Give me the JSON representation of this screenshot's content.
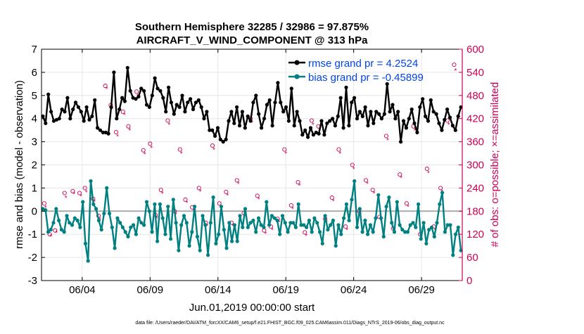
{
  "chart_data": {
    "type": "line",
    "title": "Southern Hemisphere 32285 / 32986 = 97.875%",
    "subtitle": "AIRCRAFT_V_WIND_COMPONENT @ 313 hPa",
    "xlabel": "Jun.01,2019 00:00:00 start",
    "ylabel_left": "rmse and bias (model - observation)",
    "ylabel_right": "# of obs: o=possible; ×=assimilated",
    "footer": "data file: /Users/raeder/DAI/ATM_forcXX/CAM6_setup/f.e21.FHIST_BGC.f09_025.CAM6assim.011/Diags_NTrS_2019-06/obs_diag_output.nc",
    "x_ticks": [
      {
        "value": 4,
        "label": "06/04"
      },
      {
        "value": 9,
        "label": "06/09"
      },
      {
        "value": 14,
        "label": "06/14"
      },
      {
        "value": 19,
        "label": "06/19"
      },
      {
        "value": 24,
        "label": "06/24"
      },
      {
        "value": 29,
        "label": "06/29"
      }
    ],
    "xlim": [
      1,
      32
    ],
    "ylim_left": [
      -3,
      7
    ],
    "ylim_right": [
      0,
      600
    ],
    "y_ticks_left": [
      "-3",
      "-2",
      "-1",
      "0",
      "1",
      "2",
      "3",
      "4",
      "5",
      "6",
      "7"
    ],
    "y_ticks_right": [
      "0",
      "60",
      "120",
      "180",
      "240",
      "300",
      "360",
      "420",
      "480",
      "540",
      "600"
    ],
    "legend": {
      "position": "top-right",
      "entries": [
        "rmse grand pr = 4.2524",
        "bias grand pr = -0.45899"
      ]
    },
    "colors": {
      "rmse": "#000000",
      "bias": "#008080",
      "obs": "#cc0055",
      "zero": "#aaaaaa"
    },
    "series": [
      {
        "name": "rmse",
        "values": [
          4.1,
          3.8,
          5.05,
          4.3,
          3.9,
          3.95,
          4.0,
          4.4,
          4.3,
          4.9,
          4.0,
          4.4,
          4.7,
          4.5,
          4.3,
          3.9,
          4.5,
          3.95,
          4.1,
          4.8,
          3.6,
          3.5,
          3.4,
          3.4,
          3.35,
          4.5,
          6.0,
          4.0,
          4.4,
          4.9,
          4.75,
          6.2,
          5.2,
          4.9,
          4.85,
          4.95,
          5.3,
          5.2,
          4.6,
          4.5,
          5.0,
          5.75,
          5.3,
          5.2,
          4.9,
          4.3,
          5.35,
          4.7,
          4.2,
          4.6,
          4.5,
          5.0,
          4.3,
          4.7,
          4.85,
          4.4,
          4.7,
          4.8,
          4.5,
          4.0,
          4.3,
          3.5,
          3.5,
          3.25,
          3.6,
          3.1,
          3.0,
          3.1,
          3.9,
          4.3,
          3.8,
          4.5,
          3.7,
          4.3,
          3.6,
          4.1,
          3.9,
          4.7,
          5.0,
          4.2,
          3.6,
          4.0,
          4.6,
          4.8,
          3.7,
          4.7,
          5.55,
          4.7,
          4.3,
          4.5,
          3.9,
          5.3,
          3.7,
          4.3,
          3.9,
          3.3,
          3.5,
          3.2,
          3.6,
          3.3,
          3.4,
          3.35,
          3.9,
          3.3,
          3.8,
          3.9,
          4.0,
          3.7,
          4.1,
          4.9,
          3.6,
          5.35,
          3.7,
          4.7,
          4.9,
          4.0,
          4.3,
          4.1,
          4.5,
          3.7,
          4.3,
          3.8,
          4.3,
          4.2,
          4.0,
          4.2,
          5.5,
          4.3,
          4.6,
          4.0,
          4.3,
          3.0,
          3.9,
          3.6,
          4.0,
          4.4,
          3.8,
          3.4,
          4.5,
          4.85,
          4.1,
          3.9,
          4.8,
          4.3,
          4.2,
          3.8,
          3.5,
          3.95,
          4.4,
          4.05,
          3.7,
          3.5,
          4.1,
          4.5
        ]
      },
      {
        "name": "bias",
        "values": [
          0.1,
          0.05,
          -0.9,
          -0.8,
          -0.5,
          0.1,
          -0.4,
          -0.8,
          -0.9,
          -0.2,
          -0.5,
          -0.6,
          -0.3,
          -0.4,
          -0.7,
          0.4,
          -1.4,
          -2.15,
          1.3,
          0.3,
          0.1,
          -0.4,
          -0.8,
          -0.1,
          1.0,
          -0.1,
          -0.7,
          -1.6,
          -0.3,
          -0.5,
          -0.7,
          -0.9,
          -1.1,
          -0.7,
          -0.6,
          -1.0,
          -0.3,
          -0.5,
          -0.6,
          0.4,
          0.0,
          -0.9,
          0.3,
          -1.3,
          0.3,
          -0.3,
          -1.0,
          0.2,
          -1.2,
          0.5,
          -0.5,
          -1.7,
          -0.6,
          -0.2,
          -0.5,
          -1.5,
          -0.9,
          0.2,
          -1.1,
          -1.7,
          -0.2,
          -0.6,
          -1.9,
          -0.5,
          0.6,
          -1.4,
          -1.0,
          0.2,
          -0.8,
          -1.6,
          -0.5,
          -1.3,
          -0.6,
          -1.3,
          -0.2,
          -0.7,
          0.1,
          -0.7,
          -0.5,
          -0.4,
          -0.9,
          -0.3,
          -0.6,
          -0.7,
          0.4,
          -0.6,
          -0.2,
          -0.3,
          -0.4,
          -1.0,
          -0.2,
          -0.5,
          -0.9,
          -0.5,
          -0.5,
          -0.7,
          0.3,
          -0.6,
          -0.6,
          -0.7,
          -0.4,
          -0.9,
          -0.3,
          -0.5,
          -0.9,
          -1.4,
          -0.2,
          -0.8,
          -0.6,
          -0.4,
          -1.5,
          -0.6,
          -1.0,
          -0.3,
          0.3,
          -0.4,
          0.5,
          1.3,
          -0.7,
          0.1,
          -0.9,
          -0.4,
          -1.0,
          -0.6,
          -0.9,
          -0.3,
          0.7,
          -0.3,
          -1.1,
          0.2,
          0.6,
          -0.5,
          -0.9,
          0.4,
          -0.6,
          -0.8,
          -0.9,
          -0.9,
          -0.6,
          -0.5,
          -0.7,
          0.3,
          -1.2,
          -0.5,
          -1.4,
          -0.8,
          -0.7,
          -1.1,
          -0.5,
          0.3,
          0.8,
          -0.9,
          -0.6,
          -0.6,
          -1.9,
          -1.0,
          -0.7,
          -1.7
        ]
      }
    ],
    "obs_possible": [
      {
        "x": 1.2,
        "y": 200
      },
      {
        "x": 1.6,
        "y": 120
      },
      {
        "x": 2.0,
        "y": 130
      },
      {
        "x": 2.7,
        "y": 227
      },
      {
        "x": 3.3,
        "y": 232
      },
      {
        "x": 3.8,
        "y": 227
      },
      {
        "x": 4.2,
        "y": 240
      },
      {
        "x": 4.8,
        "y": 212
      },
      {
        "x": 5.2,
        "y": 168
      },
      {
        "x": 5.7,
        "y": 505
      },
      {
        "x": 6.1,
        "y": 455
      },
      {
        "x": 6.5,
        "y": 385
      },
      {
        "x": 7.0,
        "y": 438
      },
      {
        "x": 7.4,
        "y": 400
      },
      {
        "x": 8.0,
        "y": 490
      },
      {
        "x": 8.5,
        "y": 338
      },
      {
        "x": 9.0,
        "y": 355
      },
      {
        "x": 9.4,
        "y": 170
      },
      {
        "x": 9.8,
        "y": 235
      },
      {
        "x": 10.3,
        "y": 415
      },
      {
        "x": 10.8,
        "y": 180
      },
      {
        "x": 11.2,
        "y": 340
      },
      {
        "x": 11.6,
        "y": 210
      },
      {
        "x": 12.1,
        "y": 190
      },
      {
        "x": 12.6,
        "y": 240
      },
      {
        "x": 13.1,
        "y": 150
      },
      {
        "x": 13.6,
        "y": 350
      },
      {
        "x": 14.1,
        "y": 200
      },
      {
        "x": 14.6,
        "y": 230
      },
      {
        "x": 15.0,
        "y": 150
      },
      {
        "x": 15.4,
        "y": 260
      },
      {
        "x": 15.9,
        "y": 175
      },
      {
        "x": 16.4,
        "y": 420
      },
      {
        "x": 16.9,
        "y": 220
      },
      {
        "x": 17.4,
        "y": 130
      },
      {
        "x": 17.9,
        "y": 140
      },
      {
        "x": 18.4,
        "y": 160
      },
      {
        "x": 18.9,
        "y": 340
      },
      {
        "x": 19.4,
        "y": 195
      },
      {
        "x": 19.9,
        "y": 255
      },
      {
        "x": 20.4,
        "y": 125
      },
      {
        "x": 20.9,
        "y": 415
      },
      {
        "x": 21.4,
        "y": 400
      },
      {
        "x": 21.9,
        "y": 160
      },
      {
        "x": 22.4,
        "y": 215
      },
      {
        "x": 22.9,
        "y": 340
      },
      {
        "x": 23.4,
        "y": 140
      },
      {
        "x": 23.9,
        "y": 300
      },
      {
        "x": 24.4,
        "y": 180
      },
      {
        "x": 24.9,
        "y": 260
      },
      {
        "x": 25.4,
        "y": 235
      },
      {
        "x": 25.9,
        "y": 165
      },
      {
        "x": 26.4,
        "y": 375
      },
      {
        "x": 26.9,
        "y": 135
      },
      {
        "x": 27.4,
        "y": 275
      },
      {
        "x": 27.9,
        "y": 200
      },
      {
        "x": 28.4,
        "y": 400
      },
      {
        "x": 28.9,
        "y": 120
      },
      {
        "x": 29.4,
        "y": 290
      },
      {
        "x": 29.9,
        "y": 140
      },
      {
        "x": 30.4,
        "y": 240
      },
      {
        "x": 30.9,
        "y": 415
      },
      {
        "x": 31.4,
        "y": 560
      }
    ],
    "obs_assimilated": [
      {
        "x": 1.3,
        "y": 190
      },
      {
        "x": 1.7,
        "y": 115
      },
      {
        "x": 2.1,
        "y": 125
      },
      {
        "x": 2.8,
        "y": 215
      },
      {
        "x": 3.4,
        "y": 225
      },
      {
        "x": 3.9,
        "y": 220
      },
      {
        "x": 4.3,
        "y": 230
      },
      {
        "x": 4.9,
        "y": 205
      },
      {
        "x": 5.3,
        "y": 160
      },
      {
        "x": 5.8,
        "y": 498
      },
      {
        "x": 6.2,
        "y": 445
      },
      {
        "x": 6.6,
        "y": 375
      },
      {
        "x": 7.1,
        "y": 430
      },
      {
        "x": 7.5,
        "y": 390
      },
      {
        "x": 8.1,
        "y": 480
      },
      {
        "x": 8.6,
        "y": 328
      },
      {
        "x": 9.1,
        "y": 345
      },
      {
        "x": 9.5,
        "y": 162
      },
      {
        "x": 9.9,
        "y": 226
      },
      {
        "x": 10.4,
        "y": 405
      },
      {
        "x": 10.9,
        "y": 172
      },
      {
        "x": 11.3,
        "y": 330
      },
      {
        "x": 11.7,
        "y": 202
      },
      {
        "x": 12.2,
        "y": 182
      },
      {
        "x": 12.7,
        "y": 232
      },
      {
        "x": 13.2,
        "y": 142
      },
      {
        "x": 13.7,
        "y": 340
      },
      {
        "x": 14.2,
        "y": 192
      },
      {
        "x": 14.7,
        "y": 222
      },
      {
        "x": 15.1,
        "y": 142
      },
      {
        "x": 15.5,
        "y": 252
      },
      {
        "x": 16.0,
        "y": 167
      },
      {
        "x": 16.5,
        "y": 410
      },
      {
        "x": 17.0,
        "y": 212
      },
      {
        "x": 17.5,
        "y": 122
      },
      {
        "x": 18.0,
        "y": 132
      },
      {
        "x": 18.5,
        "y": 152
      },
      {
        "x": 19.0,
        "y": 330
      },
      {
        "x": 19.5,
        "y": 187
      },
      {
        "x": 20.0,
        "y": 247
      },
      {
        "x": 20.5,
        "y": 117
      },
      {
        "x": 21.0,
        "y": 405
      },
      {
        "x": 21.5,
        "y": 390
      },
      {
        "x": 22.0,
        "y": 152
      },
      {
        "x": 22.5,
        "y": 207
      },
      {
        "x": 23.0,
        "y": 330
      },
      {
        "x": 23.5,
        "y": 132
      },
      {
        "x": 24.0,
        "y": 290
      },
      {
        "x": 24.5,
        "y": 172
      },
      {
        "x": 25.0,
        "y": 252
      },
      {
        "x": 25.5,
        "y": 227
      },
      {
        "x": 26.0,
        "y": 157
      },
      {
        "x": 26.5,
        "y": 365
      },
      {
        "x": 27.0,
        "y": 127
      },
      {
        "x": 27.5,
        "y": 267
      },
      {
        "x": 28.0,
        "y": 192
      },
      {
        "x": 28.5,
        "y": 390
      },
      {
        "x": 29.0,
        "y": 112
      },
      {
        "x": 29.5,
        "y": 280
      },
      {
        "x": 30.0,
        "y": 132
      },
      {
        "x": 30.5,
        "y": 232
      },
      {
        "x": 31.0,
        "y": 405
      },
      {
        "x": 31.5,
        "y": 545
      }
    ]
  }
}
